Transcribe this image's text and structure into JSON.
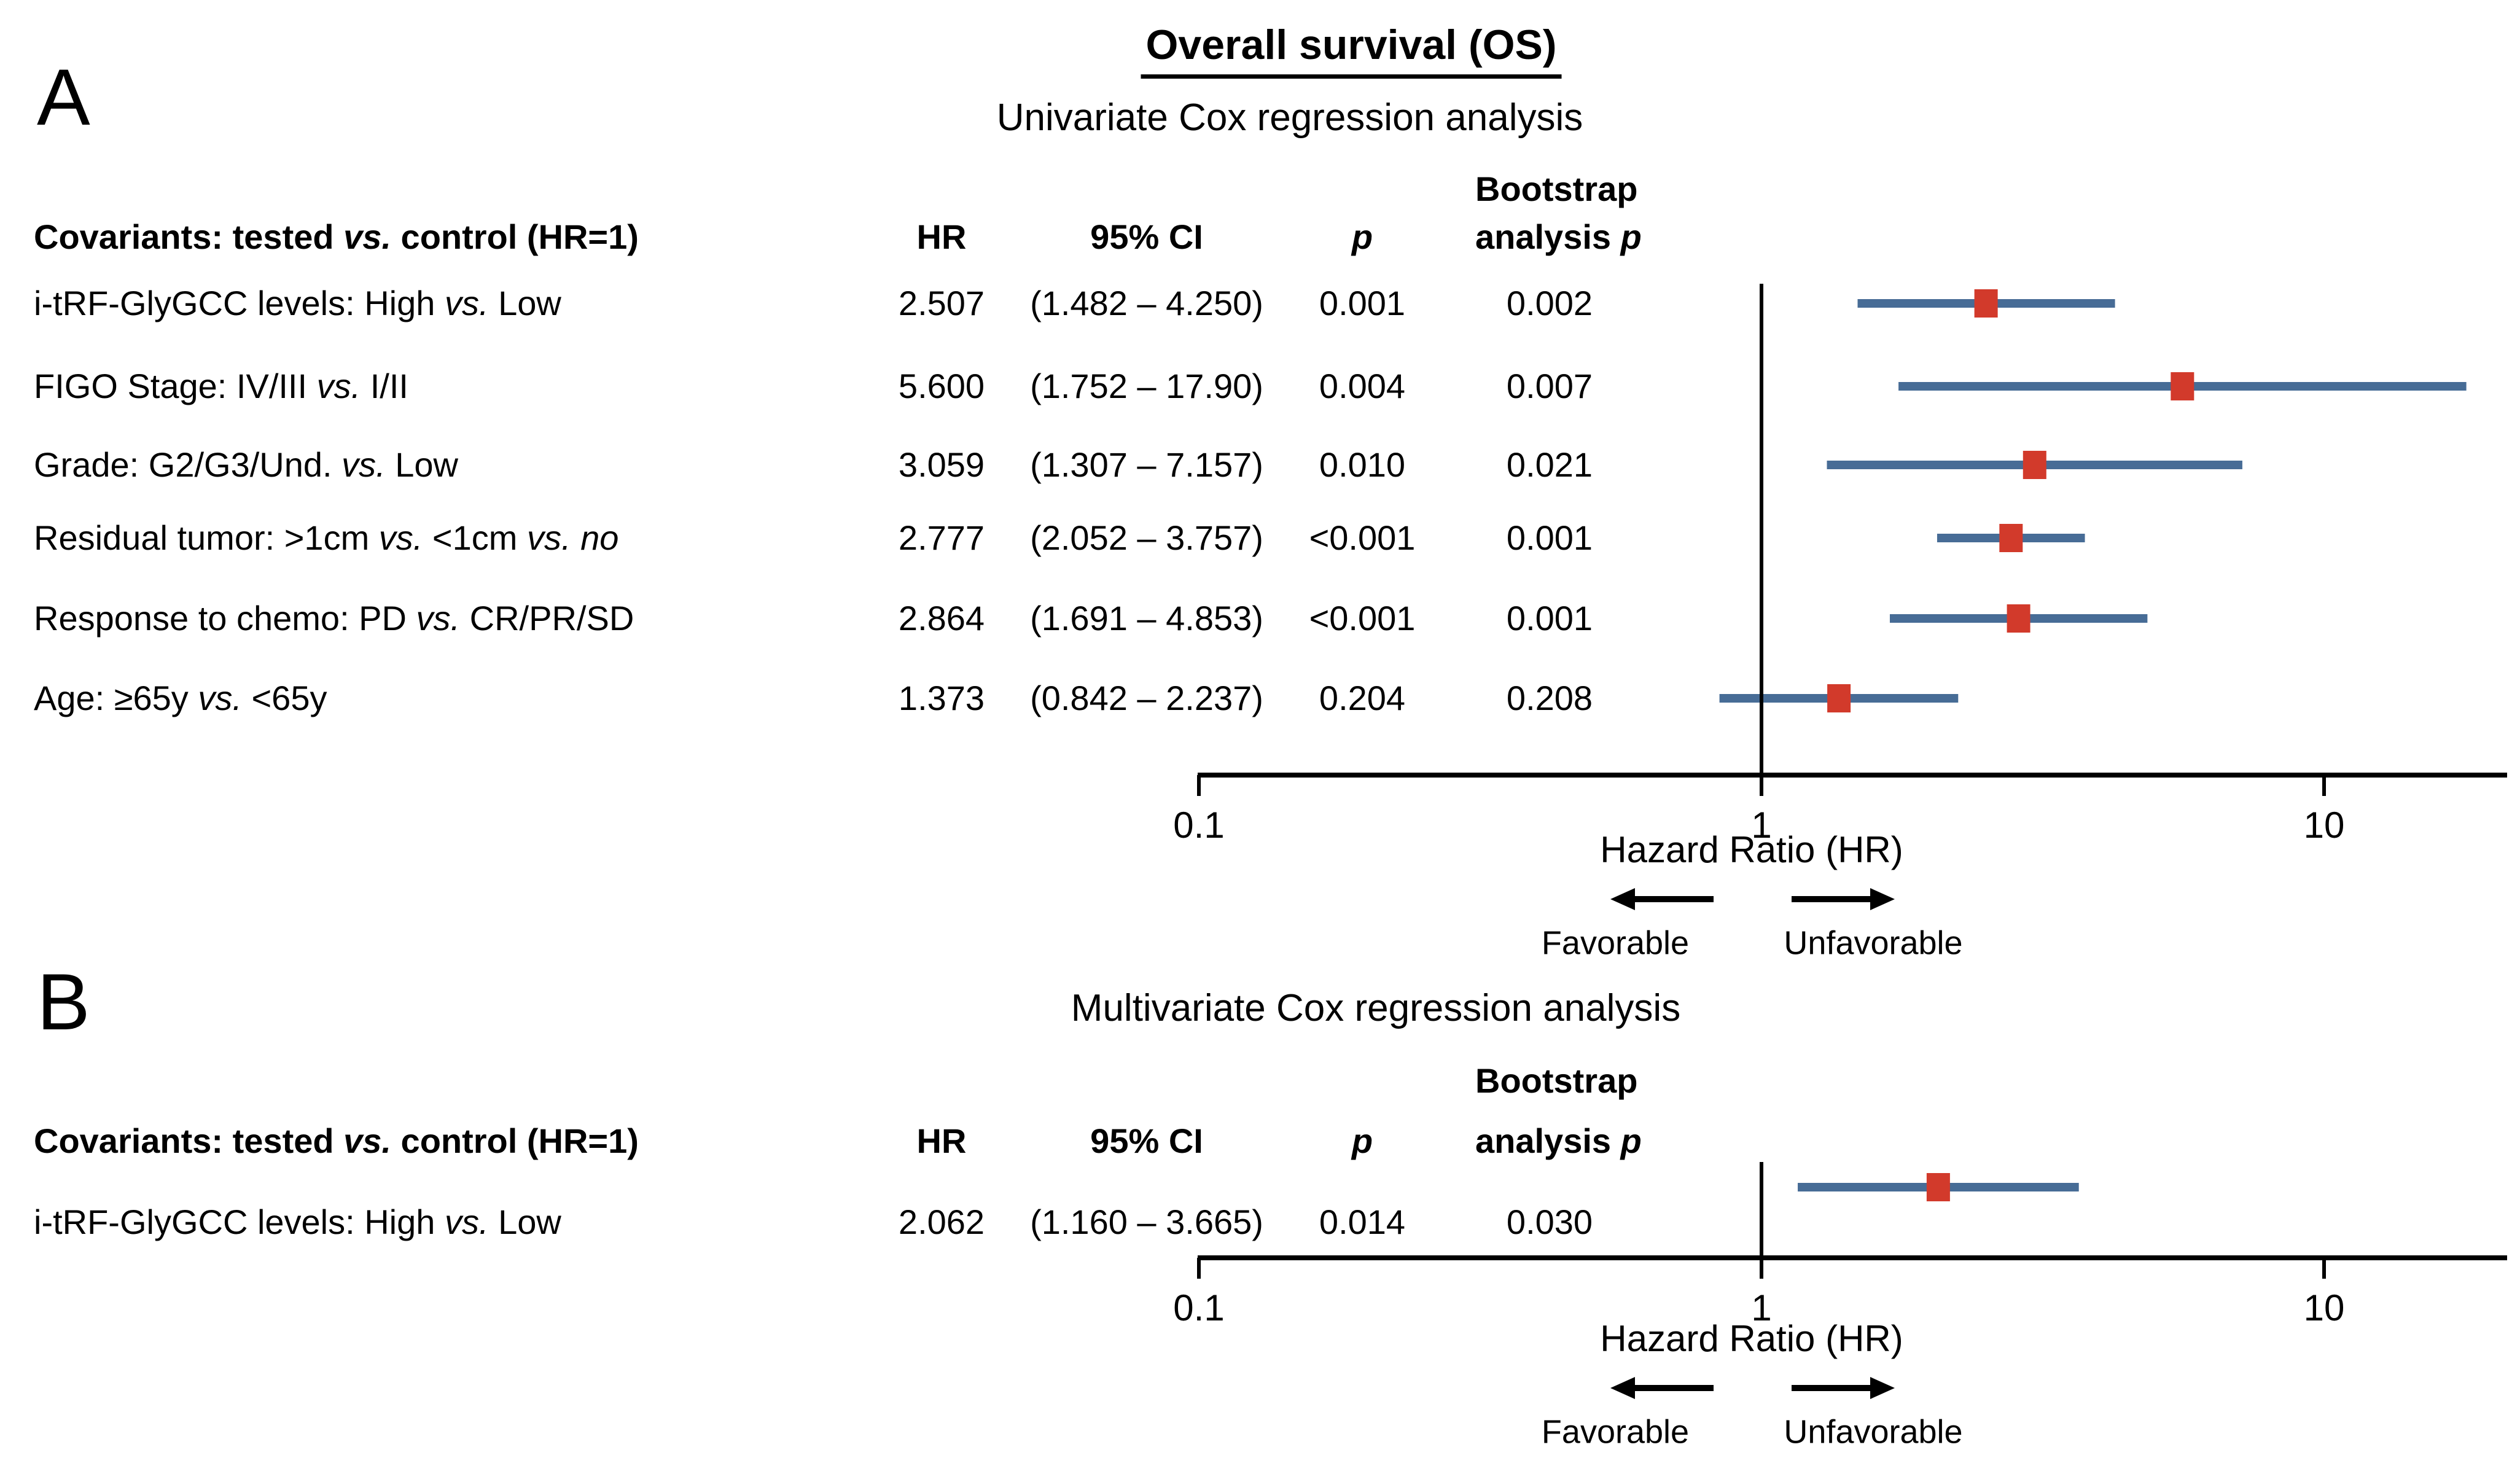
{
  "figure": {
    "title": "Overall survival (OS)",
    "panels": [
      {
        "id": "A",
        "letter": "A",
        "subtitle": "Univariate Cox regression analysis"
      },
      {
        "id": "B",
        "letter": "B",
        "subtitle": "Multivariate Cox regression analysis"
      }
    ],
    "table_header": {
      "covariants": "Covariants: tested vs. control (HR=1)",
      "hr": "HR",
      "ci": "95% CI",
      "p": "p",
      "bootstrap_line1": "Bootstrap",
      "bootstrap_line2_analysis": "analysis",
      "bootstrap_line2_p": "p"
    },
    "axis": {
      "label": "Hazard Ratio (HR)",
      "tick_labels": [
        "0.1",
        "1",
        "10"
      ],
      "favorable": "Favorable",
      "unfavorable": "Unfavorable"
    }
  },
  "chart_data": [
    {
      "type": "forest",
      "panel": "A",
      "title": "Univariate Cox regression analysis",
      "xlabel": "Hazard Ratio (HR)",
      "x_scale": "log10",
      "x_ticks": [
        0.1,
        1,
        10
      ],
      "x_range": [
        0.1,
        20
      ],
      "reference_line": 1,
      "rows": [
        {
          "label": "i-tRF-GlyGCC levels: High vs. Low",
          "hr": 2.507,
          "ci_low": 1.482,
          "ci_high": 4.25,
          "hr_text": "2.507",
          "ci_text": "(1.482 – 4.250)",
          "p_text": "0.001",
          "bootstrap_p_text": "0.002"
        },
        {
          "label": "FIGO Stage: IV/III vs. I/II",
          "hr": 5.6,
          "ci_low": 1.752,
          "ci_high": 17.9,
          "hr_text": "5.600",
          "ci_text": "(1.752 – 17.90)",
          "p_text": "0.004",
          "bootstrap_p_text": "0.007"
        },
        {
          "label": "Grade: G2/G3/Und. vs. Low",
          "hr": 3.059,
          "ci_low": 1.307,
          "ci_high": 7.157,
          "hr_text": "3.059",
          "ci_text": "(1.307 – 7.157)",
          "p_text": "0.010",
          "bootstrap_p_text": "0.021"
        },
        {
          "label": "Residual tumor: >1cm vs. <1cm vs. no",
          "hr": 2.777,
          "ci_low": 2.052,
          "ci_high": 3.757,
          "hr_text": "2.777",
          "ci_text": "(2.052 – 3.757)",
          "p_text": "<0.001",
          "bootstrap_p_text": "0.001"
        },
        {
          "label": "Response to chemo: PD vs. CR/PR/SD",
          "hr": 2.864,
          "ci_low": 1.691,
          "ci_high": 4.853,
          "hr_text": "2.864",
          "ci_text": "(1.691 – 4.853)",
          "p_text": "<0.001",
          "bootstrap_p_text": "0.001"
        },
        {
          "label": "Age: ≥65y vs. <65y",
          "hr": 1.373,
          "ci_low": 0.842,
          "ci_high": 2.237,
          "hr_text": "1.373",
          "ci_text": "(0.842 – 2.237)",
          "p_text": "0.204",
          "bootstrap_p_text": "0.208"
        }
      ]
    },
    {
      "type": "forest",
      "panel": "B",
      "title": "Multivariate Cox regression analysis",
      "xlabel": "Hazard Ratio (HR)",
      "x_scale": "log10",
      "x_ticks": [
        0.1,
        1,
        10
      ],
      "x_range": [
        0.1,
        20
      ],
      "reference_line": 1,
      "rows": [
        {
          "label": "i-tRF-GlyGCC levels: High vs. Low",
          "hr": 2.062,
          "ci_low": 1.16,
          "ci_high": 3.665,
          "hr_text": "2.062",
          "ci_text": "(1.160 – 3.665)",
          "p_text": "0.014",
          "bootstrap_p_text": "0.030"
        }
      ]
    }
  ],
  "colors": {
    "ci_bar": "#476C96",
    "marker": "#D23A2B",
    "axis": "#000000",
    "text": "#000000",
    "background": "#FFFFFF"
  }
}
